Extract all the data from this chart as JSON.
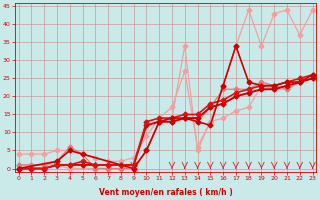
{
  "bg_color": "#caeaea",
  "grid_color": "#c88888",
  "tick_color": "#cc0000",
  "xlabel": "Vent moyen/en rafales ( km/h )",
  "xlim": [
    -0.3,
    23.3
  ],
  "ylim": [
    -1,
    46
  ],
  "yticks": [
    0,
    5,
    10,
    15,
    20,
    25,
    30,
    35,
    40,
    45
  ],
  "xticks": [
    0,
    1,
    2,
    3,
    4,
    5,
    6,
    7,
    8,
    9,
    10,
    11,
    12,
    13,
    14,
    15,
    16,
    17,
    18,
    19,
    20,
    21,
    22,
    23
  ],
  "lines": [
    {
      "x": [
        0,
        3,
        4,
        9,
        10,
        11,
        12,
        13,
        14,
        15,
        16,
        17,
        18,
        19,
        20,
        21,
        22,
        23
      ],
      "y": [
        1,
        1,
        0,
        0,
        5,
        13,
        14,
        34,
        5,
        13,
        23,
        34,
        44,
        34,
        43,
        44,
        37,
        44
      ],
      "color": "#f0a0a0",
      "lw": 0.9,
      "marker": "D",
      "ms": 2.5
    },
    {
      "x": [
        0,
        1,
        2,
        3,
        4,
        5,
        6,
        7,
        8,
        9,
        10,
        11,
        12,
        13,
        14,
        15,
        16,
        17,
        18,
        19,
        20,
        21,
        22,
        23
      ],
      "y": [
        4,
        4,
        4,
        5,
        5,
        4,
        3,
        2,
        2,
        3,
        9,
        14,
        17,
        27,
        6,
        13,
        14,
        16,
        17,
        23,
        22,
        22,
        25,
        25
      ],
      "color": "#f0a0a0",
      "lw": 0.9,
      "marker": "D",
      "ms": 2.5
    },
    {
      "x": [
        0,
        1,
        2,
        3,
        4,
        5,
        6,
        7,
        8,
        9,
        10,
        11,
        12,
        13,
        14,
        15,
        16,
        17,
        18,
        19,
        20,
        21,
        22,
        23
      ],
      "y": [
        1,
        1,
        1,
        2,
        6,
        4,
        0,
        0,
        0,
        0,
        5,
        13,
        13,
        14,
        13,
        17,
        22,
        22,
        22,
        24,
        23,
        22,
        24,
        25
      ],
      "color": "#e87878",
      "lw": 0.9,
      "marker": "D",
      "ms": 2.5
    },
    {
      "x": [
        0,
        1,
        2,
        3,
        4,
        5,
        6,
        7,
        8,
        9,
        10,
        11,
        12,
        13,
        14,
        15,
        16,
        17,
        18,
        19,
        20,
        21,
        22,
        23
      ],
      "y": [
        0,
        0,
        0,
        1,
        1,
        1,
        1,
        1,
        1,
        1,
        12,
        13,
        13,
        14,
        14,
        17,
        18,
        20,
        21,
        22,
        22,
        23,
        24,
        25
      ],
      "color": "#cc0000",
      "lw": 1.4,
      "marker": "D",
      "ms": 2.5
    },
    {
      "x": [
        0,
        1,
        2,
        3,
        4,
        5,
        6,
        7,
        8,
        9,
        10,
        11,
        12,
        13,
        14,
        15,
        16,
        17,
        18,
        19,
        20,
        21,
        22,
        23
      ],
      "y": [
        0,
        0,
        0,
        1,
        1,
        2,
        1,
        1,
        1,
        1,
        13,
        14,
        14,
        15,
        15,
        18,
        19,
        21,
        22,
        23,
        23,
        24,
        25,
        26
      ],
      "color": "#dd1111",
      "lw": 1.2,
      "marker": "D",
      "ms": 2.5
    },
    {
      "x": [
        0,
        3,
        4,
        5,
        9,
        10,
        11,
        12,
        13,
        14,
        15,
        16,
        17,
        18,
        19,
        20,
        21,
        22,
        23
      ],
      "y": [
        0,
        2,
        5,
        4,
        0,
        5,
        13,
        14,
        14,
        13,
        12,
        23,
        34,
        24,
        23,
        23,
        24,
        24,
        26
      ],
      "color": "#cc0000",
      "lw": 1.2,
      "marker": "D",
      "ms": 2.5
    }
  ],
  "arrows_x": [
    3,
    9,
    12,
    13,
    14,
    15,
    16,
    17,
    18,
    19,
    20,
    21,
    22,
    23
  ]
}
